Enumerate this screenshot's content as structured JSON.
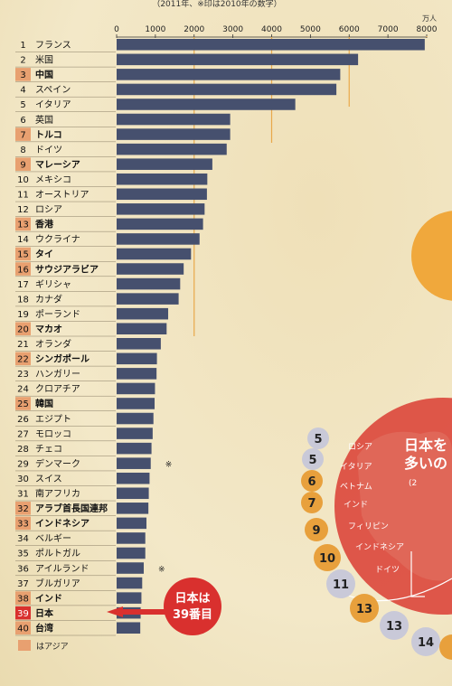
{
  "header": {
    "note": "（2011年、※印は2010年の数字）",
    "unit": "万人"
  },
  "chart_data": {
    "type": "bar",
    "orientation": "horizontal",
    "xlim": [
      0,
      8000
    ],
    "ticks": [
      0,
      1000,
      2000,
      3000,
      4000,
      5000,
      6000,
      7000,
      8000
    ],
    "reference_lines": [
      2000,
      4000,
      6000,
      8000
    ],
    "accent_color": "#e8a84a",
    "bar_color": "#46506e",
    "highlight_color": "#d9302e",
    "categories": [
      {
        "rank": "1",
        "name": "フランス",
        "value": 7950,
        "asia": false
      },
      {
        "rank": "2",
        "name": "米国",
        "value": 6230,
        "asia": false
      },
      {
        "rank": "3",
        "name": "中国",
        "value": 5770,
        "asia": true
      },
      {
        "rank": "4",
        "name": "スペイン",
        "value": 5670,
        "asia": false
      },
      {
        "rank": "5",
        "name": "イタリア",
        "value": 4610,
        "asia": false
      },
      {
        "rank": "6",
        "name": "英国",
        "value": 2930,
        "asia": false
      },
      {
        "rank": "7",
        "name": "トルコ",
        "value": 2930,
        "asia": true
      },
      {
        "rank": "8",
        "name": "ドイツ",
        "value": 2840,
        "asia": false
      },
      {
        "rank": "9",
        "name": "マレーシア",
        "value": 2470,
        "asia": true
      },
      {
        "rank": "10",
        "name": "メキシコ",
        "value": 2340,
        "asia": false
      },
      {
        "rank": "11",
        "name": "オーストリア",
        "value": 2330,
        "asia": false
      },
      {
        "rank": "12",
        "name": "ロシア",
        "value": 2270,
        "asia": false
      },
      {
        "rank": "13",
        "name": "香港",
        "value": 2230,
        "asia": true
      },
      {
        "rank": "14",
        "name": "ウクライナ",
        "value": 2140,
        "asia": false
      },
      {
        "rank": "15",
        "name": "タイ",
        "value": 1920,
        "asia": true
      },
      {
        "rank": "16",
        "name": "サウジアラビア",
        "value": 1730,
        "asia": true
      },
      {
        "rank": "17",
        "name": "ギリシャ",
        "value": 1640,
        "asia": false
      },
      {
        "rank": "18",
        "name": "カナダ",
        "value": 1600,
        "asia": false
      },
      {
        "rank": "19",
        "name": "ポーランド",
        "value": 1330,
        "asia": false
      },
      {
        "rank": "20",
        "name": "マカオ",
        "value": 1290,
        "asia": true
      },
      {
        "rank": "21",
        "name": "オランダ",
        "value": 1140,
        "asia": false
      },
      {
        "rank": "22",
        "name": "シンガポール",
        "value": 1040,
        "asia": true
      },
      {
        "rank": "23",
        "name": "ハンガリー",
        "value": 1030,
        "asia": false
      },
      {
        "rank": "24",
        "name": "クロアチア",
        "value": 990,
        "asia": false
      },
      {
        "rank": "25",
        "name": "韓国",
        "value": 980,
        "asia": true
      },
      {
        "rank": "26",
        "name": "エジプト",
        "value": 950,
        "asia": false
      },
      {
        "rank": "27",
        "name": "モロッコ",
        "value": 930,
        "asia": false
      },
      {
        "rank": "28",
        "name": "チェコ",
        "value": 900,
        "asia": false
      },
      {
        "rank": "29",
        "name": "デンマーク",
        "value": 880,
        "asia": false,
        "mark": "※"
      },
      {
        "rank": "30",
        "name": "スイス",
        "value": 850,
        "asia": false
      },
      {
        "rank": "31",
        "name": "南アフリカ",
        "value": 830,
        "asia": false
      },
      {
        "rank": "32",
        "name": "アラブ首長国連邦",
        "value": 820,
        "asia": true
      },
      {
        "rank": "33",
        "name": "インドネシア",
        "value": 770,
        "asia": true
      },
      {
        "rank": "34",
        "name": "ベルギー",
        "value": 740,
        "asia": false
      },
      {
        "rank": "35",
        "name": "ポルトガル",
        "value": 740,
        "asia": false
      },
      {
        "rank": "36",
        "name": "アイルランド",
        "value": 700,
        "asia": false,
        "mark": "※"
      },
      {
        "rank": "37",
        "name": "ブルガリア",
        "value": 660,
        "asia": false
      },
      {
        "rank": "38",
        "name": "インド",
        "value": 640,
        "asia": true
      },
      {
        "rank": "39",
        "name": "日本",
        "value": 620,
        "asia": true,
        "highlight": true
      },
      {
        "rank": "40",
        "name": "台湾",
        "value": 610,
        "asia": true
      }
    ],
    "callout": {
      "line1": "日本は",
      "line2": "39番目"
    },
    "legend": {
      "label": "はアジア"
    }
  },
  "map_panel": {
    "title_line1": "日本を",
    "title_line2": "多いの",
    "title_line3": "(2",
    "countries": [
      "ロシア",
      "イタリア",
      "ベトナム",
      "インド",
      "フィリピン",
      "インドネシア",
      "ドイツ"
    ],
    "badges": [
      {
        "label": "5",
        "color": "#c9c9d8"
      },
      {
        "label": "5",
        "color": "#c9c9d8"
      },
      {
        "label": "6",
        "color": "#e8a03c"
      },
      {
        "label": "7",
        "color": "#e8a03c"
      },
      {
        "label": "9",
        "color": "#e8a03c"
      },
      {
        "label": "10",
        "color": "#e8a03c"
      },
      {
        "label": "11",
        "color": "#c9c9d8"
      },
      {
        "label": "13",
        "color": "#e8a03c"
      },
      {
        "label": "13",
        "color": "#c9c9d8"
      },
      {
        "label": "14",
        "color": "#c9c9d8"
      }
    ]
  }
}
